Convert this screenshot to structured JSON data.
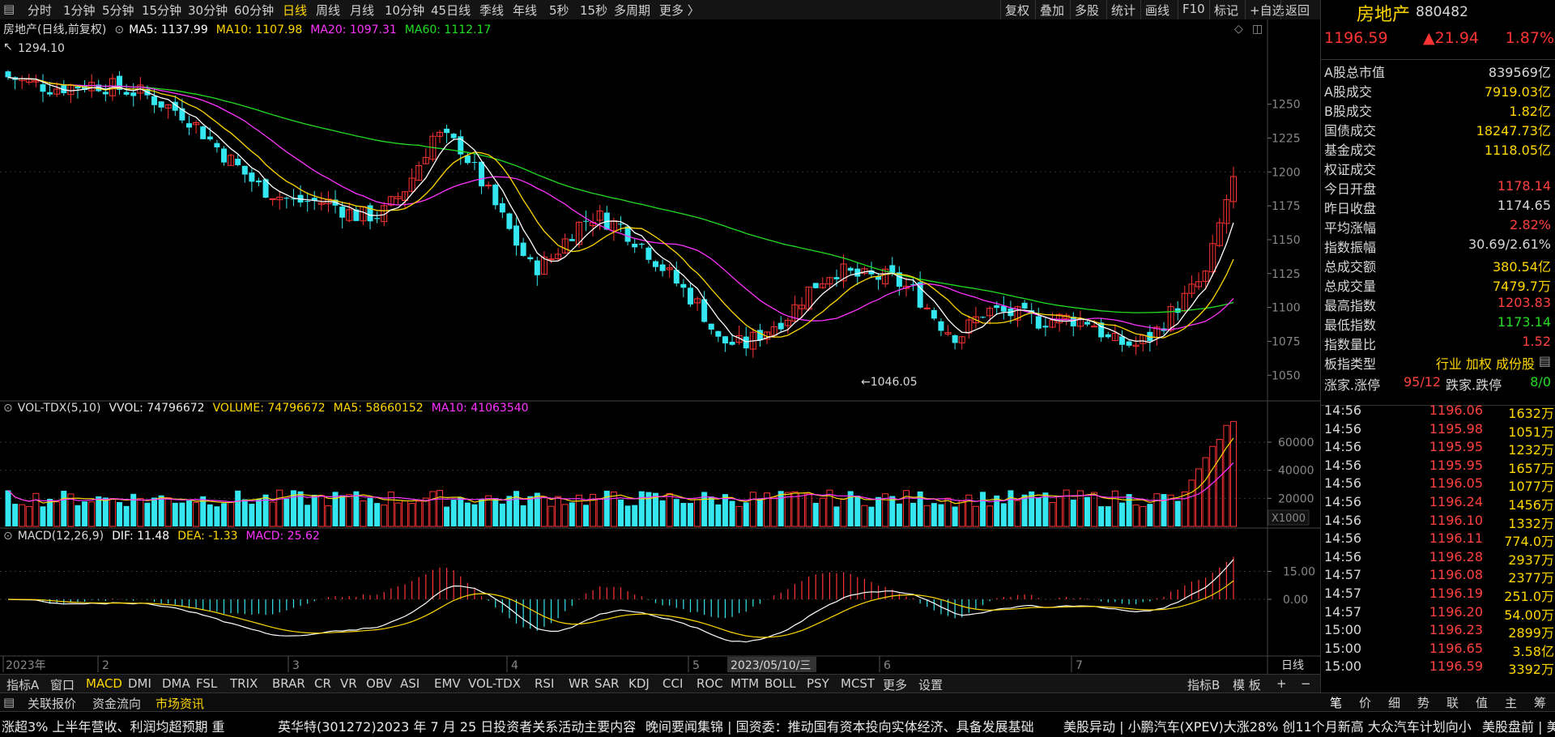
{
  "toolbar": {
    "timeframes": [
      "分时",
      "1分钟",
      "5分钟",
      "15分钟",
      "30分钟",
      "60分钟",
      "日线",
      "周线",
      "月线",
      "10分钟",
      "45日线",
      "季线",
      "年线",
      "5秒",
      "15秒",
      "多周期",
      "更多 〉"
    ],
    "active_timeframe": "日线",
    "right_items": [
      "复权",
      "叠加",
      "多股",
      "统计",
      "画线",
      "F10",
      "标记",
      "+自选",
      "返回"
    ]
  },
  "main": {
    "title": "房地产(日线,前复权)",
    "ma5": "MA5: 1137.99",
    "ma10": "MA10: 1107.98",
    "ma20": "MA20: 1097.31",
    "ma60": "MA60: 1112.17",
    "high_label": "1294.10",
    "low_label": "←1046.05",
    "y_ticks": [
      "1250",
      "1225",
      "1200",
      "1175",
      "1150",
      "1125",
      "1100",
      "1075",
      "1050"
    ]
  },
  "volume": {
    "title": "VOL-TDX(5,10)",
    "vvol": "VVOL: 74796672",
    "volume": "VOLUME: 74796672",
    "ma5": "MA5: 58660152",
    "ma10": "MA10: 41063540",
    "y_ticks": [
      "60000",
      "40000",
      "20000"
    ],
    "unit": "X1000"
  },
  "macd": {
    "title": "MACD(12,26,9)",
    "dif": "DIF: 11.48",
    "dea": "DEA: -1.33",
    "macd": "MACD: 25.62",
    "y_ticks": [
      "15.00",
      "0.00"
    ]
  },
  "x_axis": {
    "labels": [
      "2023年",
      "2",
      "3",
      "4",
      "5",
      "6",
      "7"
    ],
    "cursor_date": "2023/05/10/三",
    "period": "日线"
  },
  "chart_data": {
    "type": "candlestick",
    "x_labels": [
      "2023年",
      "2",
      "3",
      "4",
      "5",
      "6",
      "7"
    ],
    "high": 1294.1,
    "low": 1046.05,
    "last_close": 1196.59,
    "y_range": [
      1040,
      1300
    ]
  },
  "colors": {
    "up": "#ff3333",
    "down": "#33e6f0",
    "ma5": "#ffffff",
    "ma10": "#ffd700",
    "ma20": "#ff33ff",
    "ma60": "#22dd22"
  },
  "indicators": {
    "items": [
      "指标A",
      "窗口",
      "MACD",
      "DMI",
      "DMA",
      "FSL",
      "TRIX",
      "BRAR",
      "CR",
      "VR",
      "OBV",
      "ASI",
      "EMV",
      "VOL-TDX",
      "RSI",
      "WR",
      "SAR",
      "KDJ",
      "CCI",
      "ROC",
      "MTM",
      "BOLL",
      "PSY",
      "MCST",
      "更多",
      "设置"
    ],
    "active": "MACD",
    "right": [
      "指标B",
      "模 板",
      "+",
      "−"
    ]
  },
  "news_tabs": [
    "关联报价",
    "资金流向",
    "市场资讯"
  ],
  "news_active": "市场资讯",
  "ticker": [
    "涨超3% 上半年营收、利润均超预期 重",
    "英华特(301272)2023 年 7 月 25 日投资者关系活动主要内容",
    "晚间要闻集锦 | 国资委：推动国有资本投向实体经济、具备发展基础",
    "美股异动 | 小鹏汽车(XPEV)大涨28% 创11个月新高 大众汽车计划向小",
    "美股盘前 | 美"
  ],
  "right_panel": {
    "name": "房地产",
    "code": "880482",
    "price": "1196.59",
    "change": "▲21.94",
    "pct": "1.87%",
    "rows": [
      {
        "k": "A股总市值",
        "v": "839569亿",
        "c": "#d8d8d8"
      },
      {
        "k": "A股成交",
        "v": "7919.03亿",
        "c": "#ffd700"
      },
      {
        "k": "B股成交",
        "v": "1.82亿",
        "c": "#ffd700"
      },
      {
        "k": "国债成交",
        "v": "18247.73亿",
        "c": "#ffd700"
      },
      {
        "k": "基金成交",
        "v": "1118.05亿",
        "c": "#ffd700"
      },
      {
        "k": "权证成交",
        "v": "",
        "c": "#ffd700"
      },
      {
        "k": "今日开盘",
        "v": "1178.14",
        "c": "#ff4040"
      },
      {
        "k": "昨日收盘",
        "v": "1174.65",
        "c": "#d8d8d8"
      },
      {
        "k": "平均涨幅",
        "v": "2.82%",
        "c": "#ff4040"
      },
      {
        "k": "指数振幅",
        "v": "30.69/2.61%",
        "c": "#d8d8d8"
      },
      {
        "k": "总成交额",
        "v": "380.54亿",
        "c": "#ffd700"
      },
      {
        "k": "总成交量",
        "v": "7479.7万",
        "c": "#ffd700"
      },
      {
        "k": "最高指数",
        "v": "1203.83",
        "c": "#ff4040"
      },
      {
        "k": "最低指数",
        "v": "1173.14",
        "c": "#22dd22"
      },
      {
        "k": "指数量比",
        "v": "1.52",
        "c": "#ff4040"
      }
    ],
    "type_row": {
      "k": "板指类型",
      "v": "行业 加权 成份股"
    },
    "limit_row": {
      "k1": "涨家.涨停",
      "v1": "95/12",
      "k2": "跌家.跌停",
      "v2": "8/0"
    },
    "ticks": [
      {
        "t": "14:56",
        "p": "1196.06",
        "q": "1632万"
      },
      {
        "t": "14:56",
        "p": "1195.98",
        "q": "1051万"
      },
      {
        "t": "14:56",
        "p": "1195.95",
        "q": "1232万"
      },
      {
        "t": "14:56",
        "p": "1195.95",
        "q": "1657万"
      },
      {
        "t": "14:56",
        "p": "1196.05",
        "q": "1077万"
      },
      {
        "t": "14:56",
        "p": "1196.24",
        "q": "1456万"
      },
      {
        "t": "14:56",
        "p": "1196.10",
        "q": "1332万"
      },
      {
        "t": "14:56",
        "p": "1196.11",
        "q": "774.0万"
      },
      {
        "t": "14:56",
        "p": "1196.28",
        "q": "2937万"
      },
      {
        "t": "14:57",
        "p": "1196.08",
        "q": "2377万"
      },
      {
        "t": "14:57",
        "p": "1196.19",
        "q": "251.0万"
      },
      {
        "t": "14:57",
        "p": "1196.20",
        "q": "54.00万"
      },
      {
        "t": "15:00",
        "p": "1196.23",
        "q": "2899万"
      },
      {
        "t": "15:00",
        "p": "1196.65",
        "q": "3.58亿"
      },
      {
        "t": "15:00",
        "p": "1196.59",
        "q": "3392万"
      }
    ],
    "tabs": [
      "笔",
      "价",
      "细",
      "势",
      "联",
      "值",
      "主",
      "筹"
    ]
  }
}
